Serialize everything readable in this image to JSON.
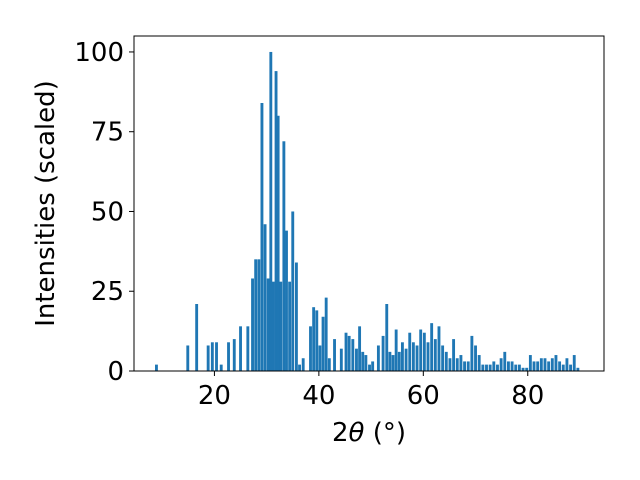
{
  "chart_data": {
    "type": "bar",
    "title": "",
    "xlabel_prefix": "2",
    "xlabel_theta": "θ",
    "xlabel_suffix": " (°)",
    "ylabel": "Intensities (scaled)",
    "xlim": [
      4.6,
      94.6
    ],
    "ylim": [
      0,
      105
    ],
    "xticks": [
      20,
      40,
      60,
      80
    ],
    "yticks": [
      0,
      25,
      50,
      75,
      100
    ],
    "grid": false,
    "bar_color": "#1f77b4",
    "bar_width_deg": 0.55,
    "x": [
      8.9,
      14.9,
      16.6,
      18.8,
      19.6,
      20.4,
      21.3,
      22.7,
      23.8,
      25.0,
      26.4,
      27.3,
      27.9,
      28.5,
      29.1,
      29.7,
      30.3,
      30.8,
      31.3,
      31.8,
      32.2,
      32.7,
      33.3,
      33.8,
      34.4,
      35.0,
      35.7,
      36.3,
      37.0,
      38.4,
      39.0,
      39.6,
      40.2,
      40.8,
      41.4,
      42.0,
      43.0,
      44.3,
      45.2,
      45.8,
      46.5,
      47.2,
      47.8,
      48.4,
      49.0,
      49.7,
      50.3,
      51.4,
      52.3,
      53.0,
      53.6,
      54.2,
      54.8,
      55.4,
      56.0,
      56.7,
      57.4,
      58.1,
      58.8,
      59.5,
      60.2,
      60.9,
      61.6,
      62.3,
      63.0,
      63.7,
      64.4,
      65.1,
      65.8,
      66.5,
      67.2,
      67.9,
      68.6,
      69.3,
      70.0,
      70.7,
      71.4,
      72.1,
      72.8,
      73.5,
      74.2,
      74.9,
      75.6,
      76.3,
      77.0,
      77.7,
      78.4,
      79.1,
      79.8,
      80.5,
      81.2,
      81.9,
      82.6,
      83.3,
      84.0,
      84.7,
      85.4,
      86.1,
      86.8,
      87.5,
      88.2,
      88.9,
      89.6
    ],
    "values": [
      2,
      8,
      21,
      8,
      9,
      9,
      2,
      9,
      10,
      14,
      14,
      29,
      35,
      35,
      84,
      46,
      29,
      100,
      28,
      94,
      80,
      28,
      72,
      44,
      28,
      50,
      34,
      2,
      4,
      14,
      20,
      19,
      8,
      17,
      23,
      4,
      10,
      7,
      12,
      11,
      10,
      7,
      14,
      6,
      5,
      2,
      3,
      8,
      11,
      21,
      6,
      5,
      13,
      6,
      9,
      7,
      12,
      9,
      8,
      13,
      12,
      9,
      15,
      10,
      14,
      8,
      6,
      4,
      10,
      4,
      5,
      3,
      3,
      11,
      8,
      5,
      2,
      2,
      2,
      3,
      2,
      4,
      6,
      3,
      3,
      2,
      2,
      1,
      1,
      5,
      3,
      3,
      4,
      4,
      3,
      4,
      5,
      3,
      2,
      4,
      2,
      5,
      1
    ]
  }
}
